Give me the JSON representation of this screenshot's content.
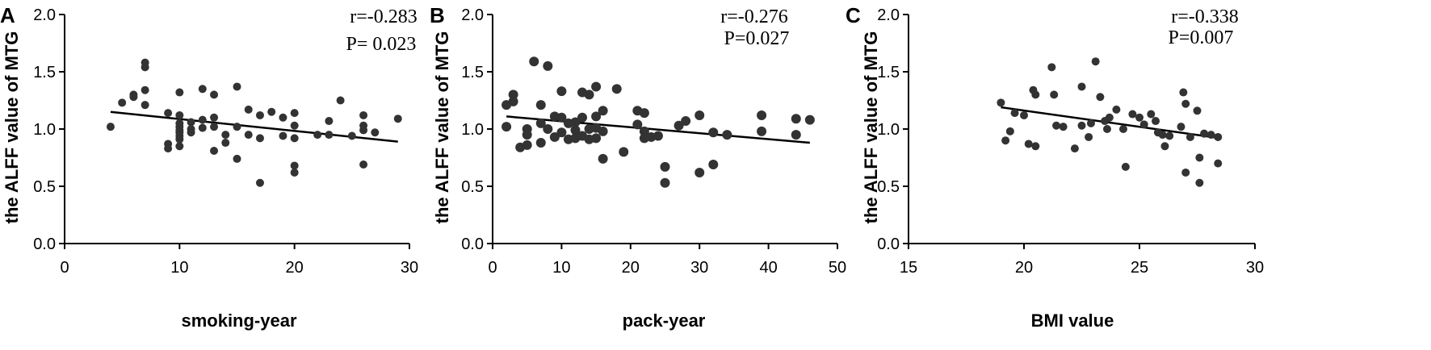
{
  "chart_data": [
    {
      "type": "scatter",
      "panel": "A",
      "ylabel": "the ALFF value of MTG",
      "xlabel": "smoking-year",
      "xlim": [
        0,
        30
      ],
      "ylim": [
        0,
        2
      ],
      "xticks": [
        0,
        10,
        20,
        30
      ],
      "yticks": [
        "0.0",
        "0.5",
        "1.0",
        "1.5",
        "2.0"
      ],
      "stat_r": "r=-0.283",
      "stat_p": "P= 0.023",
      "fit_line": [
        [
          4,
          1.15
        ],
        [
          29,
          0.89
        ]
      ],
      "points": [
        [
          4,
          1.02
        ],
        [
          5,
          1.23
        ],
        [
          6,
          1.3
        ],
        [
          6,
          1.28
        ],
        [
          7,
          1.58
        ],
        [
          7,
          1.54
        ],
        [
          7,
          1.34
        ],
        [
          7,
          1.21
        ],
        [
          9,
          0.87
        ],
        [
          9,
          0.83
        ],
        [
          9,
          1.14
        ],
        [
          10,
          1.32
        ],
        [
          10,
          1.12
        ],
        [
          10,
          1.05
        ],
        [
          10,
          1.02
        ],
        [
          10,
          0.99
        ],
        [
          10,
          0.97
        ],
        [
          10,
          0.94
        ],
        [
          10,
          0.91
        ],
        [
          10,
          0.85
        ],
        [
          11,
          1.06
        ],
        [
          11,
          1.0
        ],
        [
          11,
          0.97
        ],
        [
          12,
          1.35
        ],
        [
          12,
          1.08
        ],
        [
          12,
          1.01
        ],
        [
          13,
          1.3
        ],
        [
          13,
          1.1
        ],
        [
          13,
          1.02
        ],
        [
          13,
          0.81
        ],
        [
          14,
          0.95
        ],
        [
          14,
          0.88
        ],
        [
          15,
          1.37
        ],
        [
          15,
          1.02
        ],
        [
          15,
          0.74
        ],
        [
          16,
          1.17
        ],
        [
          16,
          0.95
        ],
        [
          17,
          1.12
        ],
        [
          17,
          0.92
        ],
        [
          17,
          0.53
        ],
        [
          18,
          1.15
        ],
        [
          19,
          1.1
        ],
        [
          19,
          0.94
        ],
        [
          20,
          1.14
        ],
        [
          20,
          1.03
        ],
        [
          20,
          0.92
        ],
        [
          20,
          0.68
        ],
        [
          20,
          0.62
        ],
        [
          22,
          0.95
        ],
        [
          23,
          1.07
        ],
        [
          23,
          0.95
        ],
        [
          24,
          1.25
        ],
        [
          25,
          0.94
        ],
        [
          26,
          1.12
        ],
        [
          26,
          1.03
        ],
        [
          26,
          0.99
        ],
        [
          26,
          0.69
        ],
        [
          27,
          0.97
        ],
        [
          29,
          1.09
        ]
      ]
    },
    {
      "type": "scatter",
      "panel": "B",
      "ylabel": "the ALFF value of MTG",
      "xlabel": "pack-year",
      "xlim": [
        0,
        50
      ],
      "ylim": [
        0,
        2
      ],
      "xticks": [
        0,
        10,
        20,
        30,
        40,
        50
      ],
      "yticks": [
        "0.0",
        "0.5",
        "1.0",
        "1.5",
        "2.0"
      ],
      "stat_r": "r=-0.276",
      "stat_p": "P=0.027",
      "fit_line": [
        [
          2,
          1.11
        ],
        [
          46,
          0.88
        ]
      ],
      "points": [
        [
          2,
          1.21
        ],
        [
          2,
          1.02
        ],
        [
          3,
          1.3
        ],
        [
          3,
          1.24
        ],
        [
          4,
          0.84
        ],
        [
          5,
          1.0
        ],
        [
          5,
          0.95
        ],
        [
          5,
          0.86
        ],
        [
          6,
          1.59
        ],
        [
          7,
          1.05
        ],
        [
          7,
          0.88
        ],
        [
          7,
          1.21
        ],
        [
          8,
          1.55
        ],
        [
          8,
          1.0
        ],
        [
          9,
          1.11
        ],
        [
          9,
          0.93
        ],
        [
          10,
          1.1
        ],
        [
          10,
          0.97
        ],
        [
          10,
          1.33
        ],
        [
          11,
          1.05
        ],
        [
          11,
          0.91
        ],
        [
          12,
          1.06
        ],
        [
          12,
          0.99
        ],
        [
          12,
          0.92
        ],
        [
          13,
          1.32
        ],
        [
          13,
          1.1
        ],
        [
          13,
          0.94
        ],
        [
          14,
          1.3
        ],
        [
          14,
          1.0
        ],
        [
          14,
          0.91
        ],
        [
          15,
          1.37
        ],
        [
          15,
          1.11
        ],
        [
          15,
          1.01
        ],
        [
          15,
          0.92
        ],
        [
          16,
          1.16
        ],
        [
          16,
          0.98
        ],
        [
          16,
          0.74
        ],
        [
          18,
          1.35
        ],
        [
          19,
          0.8
        ],
        [
          21,
          1.04
        ],
        [
          21,
          1.16
        ],
        [
          22,
          1.14
        ],
        [
          22,
          0.98
        ],
        [
          22,
          0.92
        ],
        [
          23,
          0.93
        ],
        [
          24,
          0.94
        ],
        [
          25,
          0.67
        ],
        [
          25,
          0.53
        ],
        [
          27,
          1.03
        ],
        [
          28,
          1.07
        ],
        [
          30,
          1.12
        ],
        [
          30,
          0.62
        ],
        [
          32,
          0.97
        ],
        [
          32,
          0.69
        ],
        [
          34,
          0.95
        ],
        [
          39,
          1.12
        ],
        [
          39,
          0.98
        ],
        [
          44,
          1.09
        ],
        [
          44,
          0.95
        ],
        [
          46,
          1.08
        ]
      ]
    },
    {
      "type": "scatter",
      "panel": "C",
      "ylabel": "the ALFF value of MTG",
      "xlabel": "BMI value",
      "xlim": [
        15,
        30
      ],
      "ylim": [
        0,
        2
      ],
      "xticks": [
        15,
        20,
        25,
        30
      ],
      "yticks": [
        "0.0",
        "0.5",
        "1.0",
        "1.5",
        "2.0"
      ],
      "stat_r": "r=-0.338",
      "stat_p": "P=0.007",
      "fit_line": [
        [
          19,
          1.19
        ],
        [
          28.5,
          0.92
        ]
      ],
      "points": [
        [
          19.0,
          1.23
        ],
        [
          19.2,
          0.9
        ],
        [
          19.4,
          0.98
        ],
        [
          19.6,
          1.14
        ],
        [
          20.0,
          1.12
        ],
        [
          20.2,
          0.87
        ],
        [
          20.4,
          1.34
        ],
        [
          20.5,
          1.3
        ],
        [
          20.5,
          0.85
        ],
        [
          21.2,
          1.54
        ],
        [
          21.3,
          1.3
        ],
        [
          21.4,
          1.03
        ],
        [
          21.7,
          1.02
        ],
        [
          22.2,
          0.83
        ],
        [
          22.5,
          1.37
        ],
        [
          22.5,
          1.03
        ],
        [
          22.8,
          0.93
        ],
        [
          22.9,
          1.05
        ],
        [
          23.1,
          1.59
        ],
        [
          23.3,
          1.28
        ],
        [
          23.5,
          1.07
        ],
        [
          23.6,
          1.0
        ],
        [
          23.7,
          1.1
        ],
        [
          24.0,
          1.17
        ],
        [
          24.3,
          1.0
        ],
        [
          24.4,
          0.67
        ],
        [
          24.7,
          1.13
        ],
        [
          25.0,
          1.1
        ],
        [
          25.2,
          1.04
        ],
        [
          25.5,
          1.13
        ],
        [
          25.7,
          1.07
        ],
        [
          25.8,
          0.97
        ],
        [
          26.0,
          0.95
        ],
        [
          26.1,
          0.85
        ],
        [
          26.3,
          0.94
        ],
        [
          26.8,
          1.02
        ],
        [
          26.9,
          1.32
        ],
        [
          27.0,
          1.22
        ],
        [
          27.0,
          0.62
        ],
        [
          27.2,
          0.93
        ],
        [
          27.5,
          1.16
        ],
        [
          27.6,
          0.75
        ],
        [
          27.6,
          0.53
        ],
        [
          27.8,
          0.96
        ],
        [
          28.1,
          0.95
        ],
        [
          28.4,
          0.93
        ],
        [
          28.4,
          0.7
        ]
      ]
    }
  ]
}
